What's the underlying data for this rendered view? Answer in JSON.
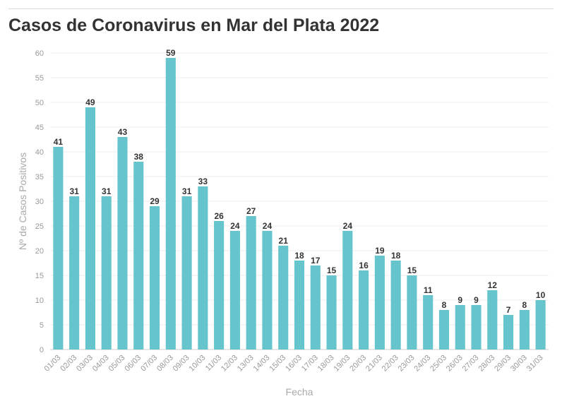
{
  "title": "Casos de Coronavirus en Mar del Plata 2022",
  "colors": {
    "bar": "#66c5cc",
    "grid": "#ececec",
    "axis": "#cccccc"
  },
  "chart_data": {
    "type": "bar",
    "title": "Casos de Coronavirus en Mar del Plata 2022",
    "xlabel": "Fecha",
    "ylabel": "Nº de Casos Positivos",
    "ylim": [
      0,
      60
    ],
    "yticks": [
      0,
      5,
      10,
      15,
      20,
      25,
      30,
      35,
      40,
      45,
      50,
      55,
      60
    ],
    "grid": true,
    "categories": [
      "01/03",
      "02/03",
      "03/03",
      "04/03",
      "05/03",
      "06/03",
      "07/03",
      "08/03",
      "09/03",
      "10/03",
      "11/03",
      "12/03",
      "13/03",
      "14/03",
      "15/03",
      "16/03",
      "17/03",
      "18/03",
      "19/03",
      "20/03",
      "21/03",
      "22/03",
      "23/03",
      "24/03",
      "25/03",
      "26/03",
      "27/03",
      "28/03",
      "29/03",
      "30/03",
      "31/03"
    ],
    "values": [
      41,
      31,
      49,
      31,
      43,
      38,
      29,
      59,
      31,
      33,
      26,
      24,
      27,
      24,
      21,
      18,
      17,
      15,
      24,
      16,
      19,
      18,
      15,
      11,
      8,
      9,
      9,
      12,
      7,
      8,
      10
    ]
  }
}
